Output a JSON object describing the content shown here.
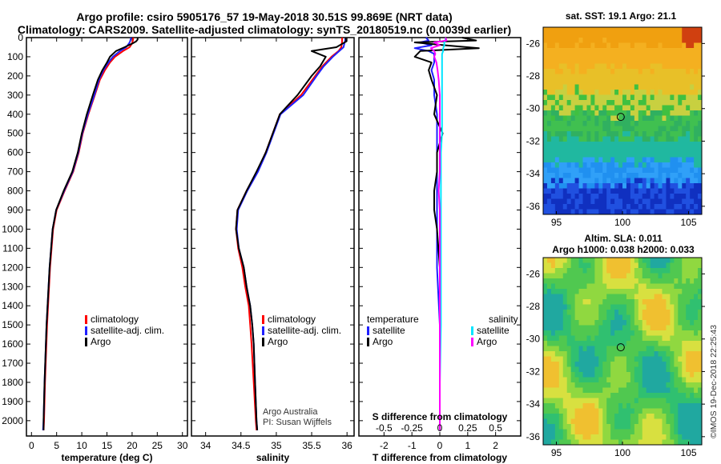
{
  "titles": {
    "line1": "Argo profile: csiro 5905176_57 19-May-2018 30.51S 99.869E (NRT data)",
    "line2": "Climatology: CARS2009. Satellite-adjusted climatology: synTS_20180519.nc (0.0039d earlier)"
  },
  "footer": "©IMOS 19-Dec-2018 22:25:43",
  "colors": {
    "red": "#ff0000",
    "blue": "#2020ff",
    "black": "#000000",
    "cyan": "#00e5ff",
    "magenta": "#ff00ff"
  },
  "chart_data": [
    {
      "type": "line",
      "name": "temperature",
      "xlabel": "temperature (deg C)",
      "ylabel": "",
      "xlim": [
        -1,
        31
      ],
      "ylim": [
        2080,
        0
      ],
      "xticks": [
        0,
        5,
        10,
        15,
        20,
        25,
        30
      ],
      "yticks": [
        0,
        100,
        200,
        300,
        400,
        500,
        600,
        700,
        800,
        900,
        1000,
        1100,
        1200,
        1300,
        1400,
        1500,
        1600,
        1700,
        1800,
        1900,
        2000
      ],
      "depth": [
        0,
        10,
        20,
        30,
        50,
        70,
        100,
        130,
        170,
        220,
        300,
        400,
        500,
        600,
        700,
        800,
        900,
        1000,
        1200,
        1500,
        1800,
        2000,
        2050
      ],
      "series": [
        {
          "name": "climatology",
          "color": "red",
          "values": [
            20.2,
            20.2,
            20.1,
            20.0,
            19.5,
            18.2,
            16.6,
            15.6,
            14.6,
            13.6,
            12.6,
            11.3,
            10.2,
            9.4,
            8.3,
            6.6,
            5.0,
            4.3,
            3.7,
            3.1,
            2.7,
            2.5,
            2.4
          ]
        },
        {
          "name": "satellite-adj. clim.",
          "color": "blue",
          "values": [
            19.8,
            19.7,
            19.6,
            19.4,
            18.8,
            17.6,
            16.2,
            15.3,
            14.3,
            13.4,
            12.5,
            11.2,
            10.1,
            9.3,
            8.2,
            6.5,
            4.9,
            4.2,
            3.6,
            3.0,
            2.6,
            2.4,
            2.3
          ]
        },
        {
          "name": "Argo",
          "color": "black",
          "values": [
            21.1,
            21.1,
            20.8,
            20.1,
            18.5,
            16.8,
            15.6,
            15.0,
            14.1,
            13.2,
            12.2,
            11.0,
            10.0,
            9.2,
            8.1,
            6.4,
            4.9,
            4.2,
            3.6,
            3.0,
            2.6,
            2.4,
            2.4
          ]
        }
      ],
      "legend": [
        {
          "label": "climatology",
          "color": "red"
        },
        {
          "label": "satellite-adj. clim.",
          "color": "blue"
        },
        {
          "label": "Argo",
          "color": "black"
        }
      ]
    },
    {
      "type": "line",
      "name": "salinity",
      "xlabel": "salinity",
      "ylabel": "",
      "xlim": [
        33.8,
        36.1
      ],
      "ylim": [
        2080,
        0
      ],
      "xticks": [
        34,
        34.5,
        35,
        35.5,
        36
      ],
      "xtick_labels": [
        "34",
        "34.5",
        "35",
        "35.5",
        "36"
      ],
      "depth": [
        0,
        20,
        50,
        70,
        100,
        150,
        200,
        300,
        400,
        500,
        600,
        700,
        800,
        900,
        1000,
        1100,
        1200,
        1300,
        1400,
        1500,
        1600,
        1800,
        2000,
        2050
      ],
      "series": [
        {
          "name": "climatology",
          "color": "red",
          "values": [
            35.93,
            35.93,
            35.92,
            35.88,
            35.78,
            35.65,
            35.55,
            35.35,
            35.05,
            34.95,
            34.85,
            34.73,
            34.58,
            34.45,
            34.43,
            34.46,
            34.52,
            34.56,
            34.61,
            34.63,
            34.65,
            34.68,
            34.71,
            34.72
          ]
        },
        {
          "name": "satellite-adj. clim.",
          "color": "blue",
          "values": [
            35.98,
            35.97,
            35.95,
            35.89,
            35.8,
            35.67,
            35.57,
            35.38,
            35.06,
            34.96,
            34.86,
            34.74,
            34.59,
            34.46,
            34.44,
            34.47,
            34.54,
            34.58,
            34.63,
            34.66,
            34.68,
            34.7,
            34.72,
            34.73
          ]
        },
        {
          "name": "Argo",
          "color": "black",
          "values": [
            35.98,
            35.99,
            35.85,
            35.5,
            35.7,
            35.62,
            35.5,
            35.3,
            35.05,
            34.95,
            34.85,
            34.72,
            34.58,
            34.45,
            34.43,
            34.47,
            34.54,
            34.58,
            34.63,
            34.66,
            34.68,
            34.7,
            34.72,
            34.73
          ]
        }
      ],
      "legend": [
        {
          "label": "climatology",
          "color": "red"
        },
        {
          "label": "satellite-adj. clim.",
          "color": "blue"
        },
        {
          "label": "Argo",
          "color": "black"
        }
      ],
      "annotations": [
        "Argo Australia",
        "PI: Susan Wijffels"
      ]
    },
    {
      "type": "line",
      "name": "differences",
      "xlabel": "T difference from climatology",
      "top_xlabel": "S difference from climatology",
      "xlim": [
        -2.9,
        2.9
      ],
      "ylim": [
        2080,
        0
      ],
      "xticks": [
        -2,
        -1,
        0,
        1,
        2
      ],
      "top_xticks": [
        -0.5,
        -0.25,
        0,
        0.25,
        0.5
      ],
      "top_xtick_labels": [
        "-0.5",
        "-0.25",
        "0",
        "0.25",
        "0.5"
      ],
      "depth": [
        0,
        15,
        25,
        40,
        55,
        70,
        85,
        100,
        130,
        170,
        220,
        300,
        400,
        500,
        600,
        700,
        800,
        900,
        1000,
        1200,
        1500,
        1800,
        2000,
        2050
      ],
      "series": [
        {
          "name": "temperature satellite",
          "color": "blue",
          "axis": "T",
          "values": [
            -0.5,
            -0.4,
            -0.7,
            -0.3,
            -0.9,
            -0.4,
            -0.2,
            -0.2,
            -0.2,
            -0.3,
            -0.2,
            -0.2,
            -0.1,
            -0.1,
            -0.1,
            -0.1,
            -0.1,
            -0.1,
            -0.1,
            -0.1,
            0.0,
            0.0,
            0.0,
            0.0
          ]
        },
        {
          "name": "temperature Argo",
          "color": "black",
          "axis": "T",
          "values": [
            0.8,
            1.3,
            -0.9,
            0.2,
            1.4,
            -0.7,
            -0.8,
            -0.9,
            -0.3,
            -0.4,
            -0.3,
            -0.1,
            -0.2,
            0.1,
            -0.1,
            -0.1,
            -0.2,
            -0.2,
            -0.1,
            0.0,
            0.0,
            0.0,
            0.0,
            0.0
          ]
        },
        {
          "name": "salinity satellite",
          "color": "cyan",
          "axis": "S",
          "values": [
            0.05,
            0.05,
            0.04,
            0.04,
            0.03,
            0.03,
            0.02,
            0.02,
            0.02,
            0.02,
            0.02,
            0.02,
            0.02,
            0.02,
            0.01,
            0.01,
            0.01,
            0.01,
            0.01,
            0.01,
            0.01,
            0.0,
            0.0,
            0.0
          ]
        },
        {
          "name": "salinity Argo",
          "color": "magenta",
          "axis": "S",
          "values": [
            0.05,
            0.06,
            -0.05,
            0.0,
            -0.08,
            -0.05,
            -0.04,
            -0.05,
            -0.03,
            -0.02,
            -0.01,
            0.0,
            0.0,
            0.0,
            0.0,
            0.0,
            -0.01,
            0.0,
            0.0,
            0.0,
            0.0,
            0.0,
            0.0,
            0.0
          ]
        }
      ],
      "legend_left_title": "temperature",
      "legend_right_title": "salinity",
      "legend_left": [
        {
          "label": "satellite",
          "color": "blue"
        },
        {
          "label": "Argo",
          "color": "black"
        }
      ],
      "legend_right": [
        {
          "label": "satellite",
          "color": "cyan"
        },
        {
          "label": "Argo",
          "color": "magenta"
        }
      ]
    },
    {
      "type": "heatmap",
      "name": "sst-map",
      "title": "sat. SST: 19.1 Argo: 21.1",
      "xlim": [
        94,
        106
      ],
      "ylim": [
        -36.5,
        -25
      ],
      "xticks": [
        95,
        100,
        105
      ],
      "yticks": [
        -26,
        -28,
        -30,
        -32,
        -34,
        -36
      ],
      "float_position": {
        "lon": 99.869,
        "lat": -30.51
      }
    },
    {
      "type": "heatmap",
      "name": "sla-map",
      "title": "Altim. SLA: 0.011",
      "subtitle": "Argo h1000: 0.038 h2000: 0.033",
      "xlim": [
        94,
        106
      ],
      "ylim": [
        -36.5,
        -25
      ],
      "xticks": [
        95,
        100,
        105
      ],
      "yticks": [
        -26,
        -28,
        -30,
        -32,
        -34,
        -36
      ],
      "float_position": {
        "lon": 99.869,
        "lat": -30.51
      }
    }
  ]
}
